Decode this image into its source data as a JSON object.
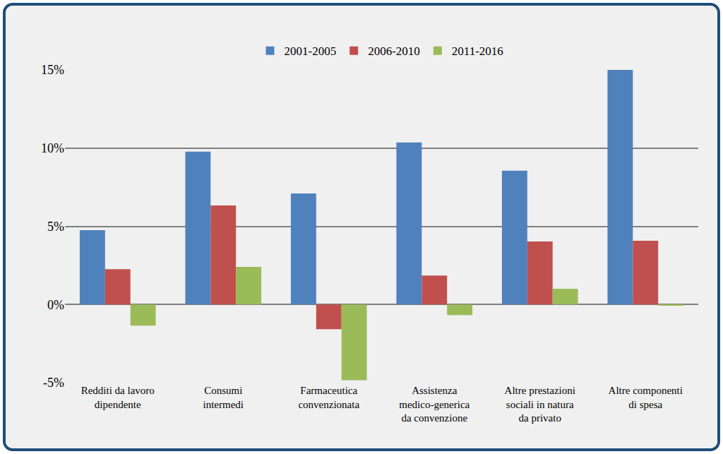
{
  "chart_data": {
    "type": "bar",
    "categories": [
      "Redditi da lavoro\ndipendente",
      "Consumi\nintermedi",
      "Farmaceutica\nconvenzionata",
      "Assistenza\nmedico-generica\nda convenzione",
      "Altre prestazioni\nsociali in natura\nda privato",
      "Altre componenti\ndi spesa"
    ],
    "series": [
      {
        "name": "2001-2005",
        "color": "#4f81bd",
        "values": [
          4.75,
          9.77,
          7.1,
          10.36,
          8.55,
          15.0
        ]
      },
      {
        "name": "2006-2010",
        "color": "#c0504d",
        "values": [
          2.26,
          6.33,
          -1.58,
          1.85,
          4.03,
          4.07
        ]
      },
      {
        "name": "2011-2016",
        "color": "#9bbb59",
        "values": [
          -1.36,
          2.4,
          -4.84,
          -0.68,
          1.0,
          -0.05
        ]
      }
    ],
    "ylim": [
      -5,
      15
    ],
    "yticks": [
      {
        "value": -5,
        "label": "-5%"
      },
      {
        "value": 0,
        "label": "0%"
      },
      {
        "value": 5,
        "label": "5%"
      },
      {
        "value": 10,
        "label": "10%"
      },
      {
        "value": 15,
        "label": "15%"
      }
    ],
    "grid": true,
    "legend": "top"
  }
}
